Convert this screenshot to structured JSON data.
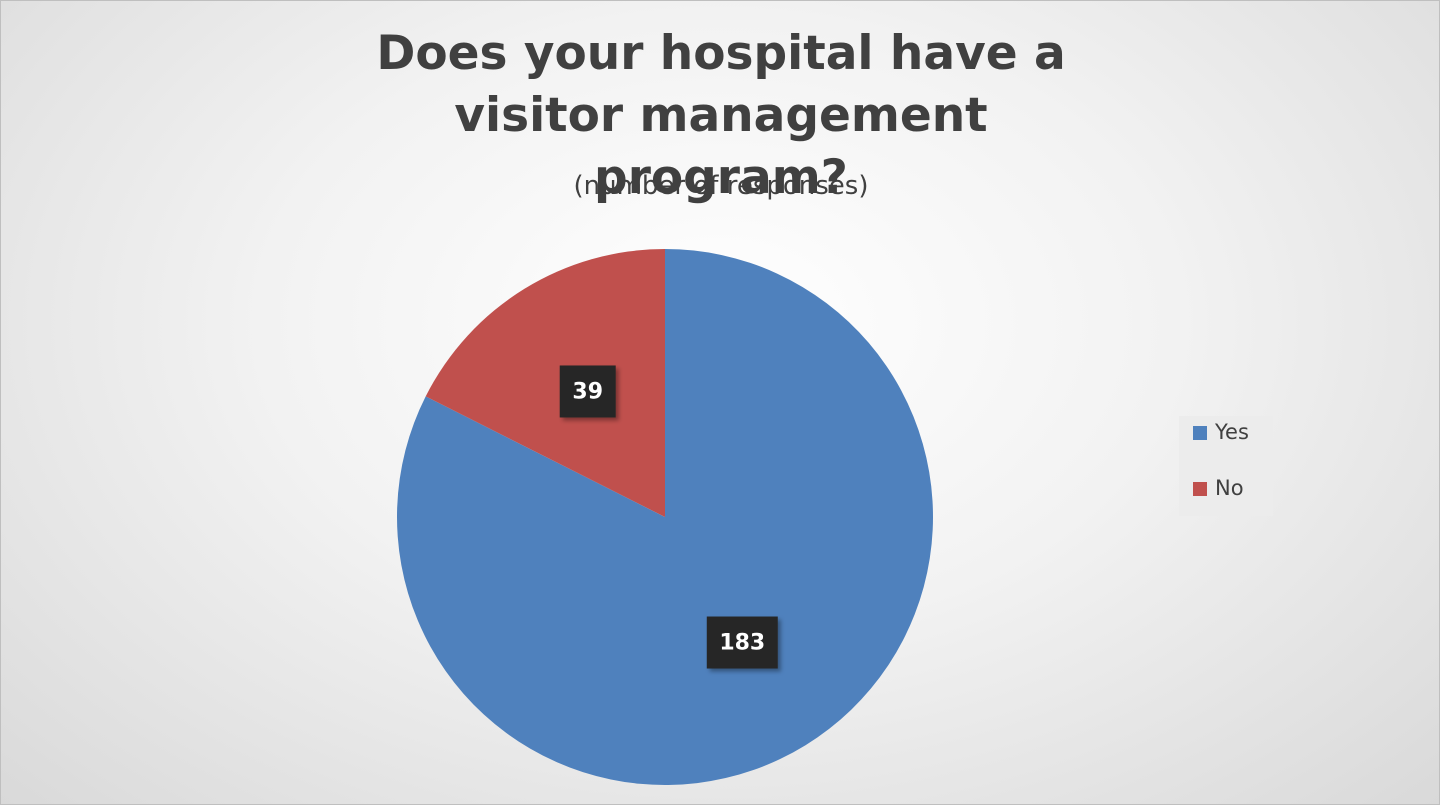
{
  "chart_data": {
    "type": "pie",
    "title": "Does your hospital have a visitor management program?",
    "subtitle": "(number of responses)",
    "categories": [
      "Yes",
      "No"
    ],
    "values": [
      183,
      39
    ],
    "colors": [
      "#4f81bd",
      "#c0504d"
    ],
    "legend": "right"
  }
}
